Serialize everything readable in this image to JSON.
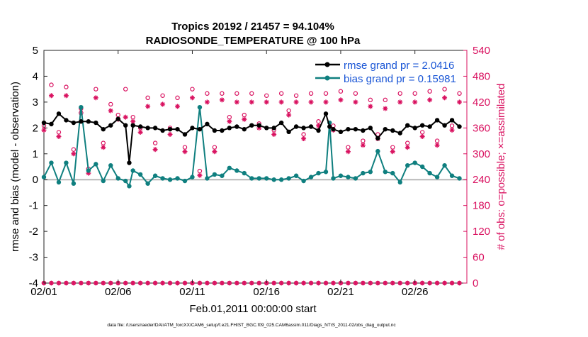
{
  "chart_data": {
    "type": "line",
    "title_line1": "Tropics 20192 / 21457 = 94.104%",
    "title_line2": "RADIOSONDE_TEMPERATURE @ 100 hPa",
    "xlabel": "Feb.01,2011 00:00:00 start",
    "ylabel_left": "rmse and bias (model - observation)",
    "ylabel_right": "# of obs: o=possible; ×=assimilated",
    "footer": "data file: /Users/raeder/DAI/ATM_forcXX/CAM6_setup/f.e21.FHIST_BGC.f09_025.CAM6assim.011/Diags_NTrS_2011-02/obs_diag_output.nc",
    "xlim": [
      1,
      29.5
    ],
    "ylim_left": [
      -4,
      5
    ],
    "ylim_right": [
      0,
      540
    ],
    "x_ticks": [
      1,
      6,
      11,
      16,
      21,
      26
    ],
    "x_tick_labels": [
      "02/01",
      "02/06",
      "02/11",
      "02/16",
      "02/21",
      "02/26"
    ],
    "y_ticks_left": [
      -4,
      -3,
      -2,
      -1,
      0,
      1,
      2,
      3,
      4,
      5
    ],
    "y_ticks_right": [
      0,
      60,
      120,
      180,
      240,
      300,
      360,
      420,
      480,
      540
    ],
    "colors": {
      "rmse": "#000000",
      "bias": "#0f7f7f",
      "obs": "#d9105f",
      "zero_line": "#b8b8b8",
      "legend_text": "#1a56d6"
    },
    "series": [
      {
        "name": "rmse grand pr = 2.0416",
        "x": [
          1.0,
          1.5,
          2.0,
          2.5,
          3.0,
          3.5,
          4.0,
          4.5,
          5.0,
          5.5,
          6.0,
          6.5,
          6.75,
          7.0,
          7.5,
          8.0,
          8.5,
          9.0,
          9.5,
          10.0,
          10.5,
          11.0,
          11.5,
          12.0,
          12.5,
          13.0,
          13.5,
          14.0,
          14.5,
          15.0,
          15.5,
          16.0,
          16.5,
          17.0,
          17.5,
          18.0,
          18.5,
          19.0,
          19.5,
          20.0,
          20.25,
          20.5,
          21.0,
          21.5,
          22.0,
          22.5,
          23.0,
          23.5,
          24.0,
          24.5,
          25.0,
          25.5,
          26.0,
          26.5,
          27.0,
          27.5,
          28.0,
          28.5,
          29.0
        ],
        "values": [
          2.2,
          2.15,
          2.55,
          2.3,
          2.2,
          2.25,
          2.25,
          2.2,
          1.95,
          2.1,
          2.35,
          2.1,
          0.65,
          2.1,
          2.05,
          2.0,
          2.0,
          1.9,
          1.95,
          1.95,
          1.75,
          2.0,
          1.95,
          2.15,
          1.9,
          1.9,
          2.0,
          2.05,
          1.95,
          2.1,
          2.1,
          2.0,
          2.0,
          2.2,
          1.85,
          2.05,
          2.0,
          2.05,
          1.9,
          2.55,
          2.05,
          1.95,
          1.85,
          1.95,
          1.95,
          1.9,
          2.0,
          1.6,
          1.95,
          1.9,
          1.8,
          2.1,
          2.0,
          2.1,
          2.05,
          2.3,
          2.1,
          2.3,
          2.05
        ]
      },
      {
        "name": "bias grand pr = 0.15981",
        "x": [
          1.0,
          1.5,
          2.0,
          2.5,
          3.0,
          3.5,
          4.0,
          4.5,
          5.0,
          5.5,
          6.0,
          6.5,
          6.75,
          7.0,
          7.5,
          8.0,
          8.5,
          9.0,
          9.5,
          10.0,
          10.5,
          11.0,
          11.5,
          12.0,
          12.5,
          13.0,
          13.5,
          14.0,
          14.5,
          15.0,
          15.5,
          16.0,
          16.5,
          17.0,
          17.5,
          18.0,
          18.5,
          19.0,
          19.5,
          20.0,
          20.25,
          20.5,
          21.0,
          21.5,
          22.0,
          22.5,
          23.0,
          23.5,
          24.0,
          24.5,
          25.0,
          25.5,
          26.0,
          26.5,
          27.0,
          27.5,
          28.0,
          28.5,
          29.0
        ],
        "values": [
          0.1,
          0.65,
          -0.1,
          0.65,
          -0.15,
          2.8,
          0.35,
          0.6,
          -0.05,
          0.55,
          0.05,
          -0.05,
          -0.25,
          0.35,
          0.2,
          -0.15,
          0.15,
          0.05,
          0.0,
          0.05,
          -0.05,
          0.1,
          2.8,
          0.05,
          0.2,
          0.15,
          0.45,
          0.35,
          0.25,
          0.05,
          0.05,
          0.05,
          0.0,
          0.0,
          0.05,
          0.15,
          -0.05,
          0.1,
          0.25,
          0.3,
          2.2,
          0.05,
          0.15,
          0.1,
          0.05,
          0.25,
          0.3,
          1.1,
          0.3,
          0.25,
          -0.1,
          0.55,
          0.65,
          0.5,
          0.25,
          0.1,
          0.55,
          0.15,
          0.05
        ]
      }
    ],
    "obs_possible": {
      "x": [
        1.0,
        1.5,
        2.0,
        2.5,
        3.0,
        3.5,
        4.0,
        4.5,
        5.0,
        5.5,
        6.0,
        6.5,
        7.0,
        7.5,
        8.0,
        8.5,
        9.0,
        9.5,
        10.0,
        10.5,
        11.0,
        11.5,
        12.0,
        12.5,
        13.0,
        13.5,
        14.0,
        14.5,
        15.0,
        15.5,
        16.0,
        16.5,
        17.0,
        17.5,
        18.0,
        18.5,
        19.0,
        19.5,
        20.0,
        20.5,
        21.0,
        21.5,
        22.0,
        22.5,
        23.0,
        23.5,
        24.0,
        24.5,
        25.0,
        25.5,
        26.0,
        26.5,
        27.0,
        27.5,
        28.0,
        28.5,
        29.0
      ],
      "values": [
        365,
        460,
        350,
        455,
        310,
        405,
        265,
        450,
        325,
        415,
        390,
        450,
        385,
        360,
        430,
        325,
        435,
        360,
        430,
        315,
        450,
        260,
        440,
        315,
        440,
        385,
        440,
        390,
        440,
        370,
        435,
        355,
        440,
        400,
        435,
        345,
        440,
        375,
        440,
        365,
        445,
        315,
        440,
        330,
        425,
        345,
        425,
        315,
        440,
        325,
        440,
        350,
        445,
        330,
        450,
        365,
        440
      ]
    },
    "obs_assimilated": {
      "x": [
        1.0,
        1.5,
        2.0,
        2.5,
        3.0,
        3.5,
        4.0,
        4.5,
        5.0,
        5.5,
        6.0,
        6.5,
        7.0,
        7.5,
        8.0,
        8.5,
        9.0,
        9.5,
        10.0,
        10.5,
        11.0,
        11.5,
        12.0,
        12.5,
        13.0,
        13.5,
        14.0,
        14.5,
        15.0,
        15.5,
        16.0,
        16.5,
        17.0,
        17.5,
        18.0,
        18.5,
        19.0,
        19.5,
        20.0,
        20.5,
        21.0,
        21.5,
        22.0,
        22.5,
        23.0,
        23.5,
        24.0,
        24.5,
        25.0,
        25.5,
        26.0,
        26.5,
        27.0,
        27.5,
        28.0,
        28.5,
        29.0
      ],
      "values": [
        355,
        435,
        340,
        435,
        300,
        395,
        255,
        430,
        315,
        400,
        380,
        385,
        375,
        350,
        410,
        310,
        415,
        345,
        410,
        305,
        430,
        250,
        420,
        305,
        425,
        375,
        420,
        380,
        420,
        360,
        420,
        345,
        420,
        390,
        420,
        335,
        420,
        365,
        420,
        355,
        425,
        305,
        420,
        320,
        410,
        335,
        405,
        305,
        420,
        315,
        420,
        340,
        425,
        320,
        430,
        355,
        420
      ]
    },
    "bottom_markers_y": -4
  }
}
